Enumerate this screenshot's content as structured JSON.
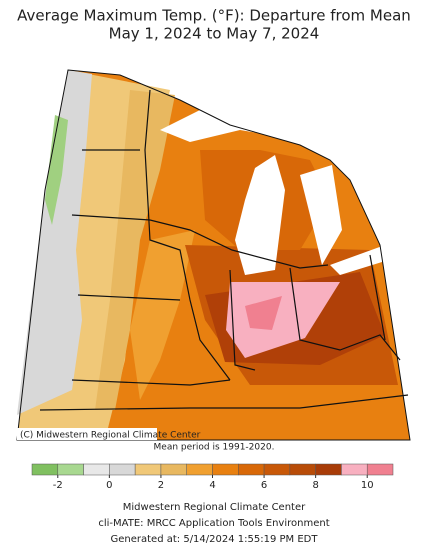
{
  "title": [
    "Average Maximum Temp. (°F): Departure from Mean",
    "May 1, 2024 to May 7, 2024"
  ],
  "map_credit": "(C) Midwestern Regional Climate Center",
  "note": "Mean period is 1991-2020.",
  "colorbar": {
    "range": [
      -3,
      11
    ],
    "ticks": [
      -2,
      0,
      2,
      4,
      6,
      8,
      10
    ],
    "colors": [
      "#80c060",
      "#a8d890",
      "#e8e8e8",
      "#d8d8d8",
      "#f0c878",
      "#e8b860",
      "#f0a030",
      "#e88010",
      "#d86808",
      "#c85808",
      "#b84c08",
      "#a83c08",
      "#f8b0c0",
      "#f08090"
    ]
  },
  "footer": [
    "Midwestern Regional Climate Center",
    "cli-MATE: MRCC Application Tools Environment",
    "Generated at: 5/14/2024 1:55:19 PM EDT"
  ]
}
